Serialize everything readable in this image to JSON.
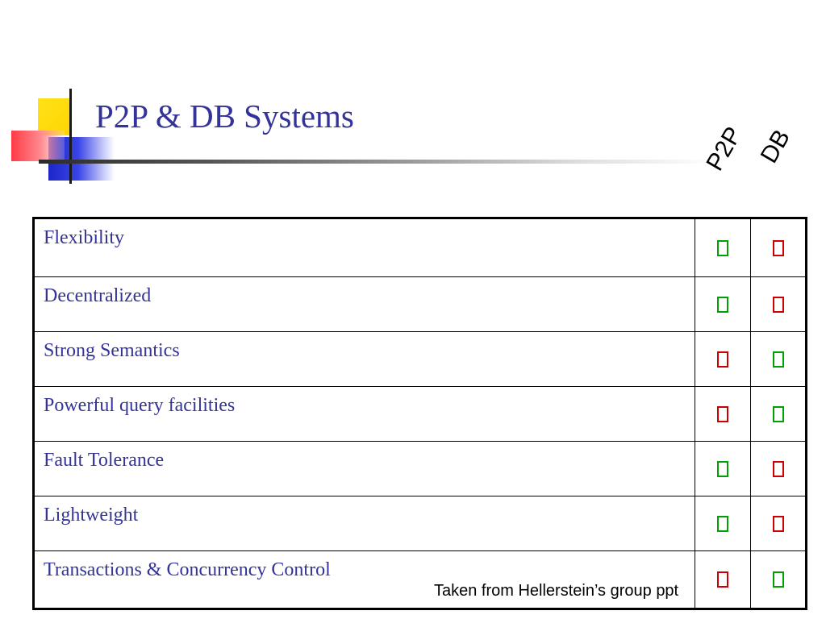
{
  "slide": {
    "title": "P2P & DB Systems",
    "column_headers": [
      "P2P",
      "DB"
    ],
    "rows": [
      {
        "feature": "Flexibility",
        "p2p": "yes",
        "db": "no"
      },
      {
        "feature": "Decentralized",
        "p2p": "yes",
        "db": "no"
      },
      {
        "feature": "Strong Semantics",
        "p2p": "no",
        "db": "yes"
      },
      {
        "feature": "Powerful query facilities",
        "p2p": "no",
        "db": "yes"
      },
      {
        "feature": "Fault Tolerance",
        "p2p": "yes",
        "db": "no"
      },
      {
        "feature": "Lightweight",
        "p2p": "yes",
        "db": "no"
      },
      {
        "feature": "Transactions & Concurrency Control",
        "p2p": "no",
        "db": "yes"
      }
    ],
    "credit": "Taken from Hellerstein’s group ppt"
  },
  "colors": {
    "title": "#333399",
    "feature_text": "#333399",
    "yes_mark": "#00a000",
    "no_mark": "#cc0000"
  },
  "icons": {
    "yes": "check-mark-icon",
    "no": "cross-mark-icon"
  }
}
